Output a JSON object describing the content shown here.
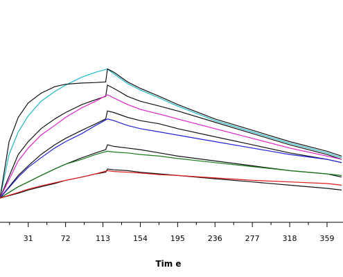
{
  "chart_data": {
    "type": "line",
    "title": "",
    "xlabel": "Tim e",
    "ylabel": "",
    "grid": false,
    "xlim": [
      0,
      375
    ],
    "ylim": [
      0,
      100
    ],
    "x_ticks": [
      31,
      72,
      113,
      154,
      195,
      236,
      277,
      318,
      359
    ],
    "x_tick_labels": [
      "31",
      "72",
      "113",
      "154",
      "195",
      "236",
      "277",
      "318",
      "359"
    ],
    "series": [
      {
        "color": "#19b8c8",
        "points": [
          [
            0,
            3
          ],
          [
            10,
            30
          ],
          [
            20,
            44
          ],
          [
            31,
            54
          ],
          [
            45,
            63
          ],
          [
            60,
            69
          ],
          [
            72,
            73
          ],
          [
            90,
            78
          ],
          [
            105,
            81
          ],
          [
            118,
            83
          ],
          [
            125,
            80
          ],
          [
            140,
            74
          ],
          [
            154,
            70
          ],
          [
            175,
            65
          ],
          [
            195,
            60
          ],
          [
            236,
            51
          ],
          [
            277,
            44
          ],
          [
            318,
            37
          ],
          [
            359,
            31
          ],
          [
            375,
            28
          ]
        ]
      },
      {
        "color": "#111111",
        "points": [
          [
            0,
            3
          ],
          [
            10,
            38
          ],
          [
            20,
            53
          ],
          [
            31,
            62
          ],
          [
            45,
            68
          ],
          [
            60,
            72
          ],
          [
            72,
            73.5
          ],
          [
            90,
            74.3
          ],
          [
            105,
            74.6
          ],
          [
            116,
            75
          ],
          [
            118,
            83
          ],
          [
            125,
            81
          ],
          [
            140,
            75
          ],
          [
            154,
            71
          ],
          [
            175,
            66
          ],
          [
            195,
            61
          ],
          [
            236,
            52
          ],
          [
            277,
            45
          ],
          [
            318,
            38
          ],
          [
            359,
            32
          ],
          [
            375,
            29
          ]
        ]
      },
      {
        "color": "#111111",
        "points": [
          [
            0,
            3
          ],
          [
            20,
            30
          ],
          [
            31,
            38
          ],
          [
            45,
            46
          ],
          [
            60,
            52
          ],
          [
            72,
            56
          ],
          [
            90,
            61
          ],
          [
            105,
            64
          ],
          [
            116,
            66
          ],
          [
            118,
            73
          ],
          [
            125,
            71
          ],
          [
            140,
            66
          ],
          [
            154,
            63
          ],
          [
            175,
            60
          ],
          [
            195,
            57
          ],
          [
            236,
            50
          ],
          [
            277,
            43
          ],
          [
            318,
            36
          ],
          [
            359,
            30
          ],
          [
            375,
            27
          ]
        ]
      },
      {
        "color": "#e020d0",
        "points": [
          [
            0,
            3
          ],
          [
            20,
            26
          ],
          [
            31,
            34
          ],
          [
            45,
            42
          ],
          [
            60,
            48
          ],
          [
            72,
            53
          ],
          [
            90,
            59
          ],
          [
            105,
            63
          ],
          [
            118,
            67
          ],
          [
            125,
            65
          ],
          [
            140,
            61
          ],
          [
            154,
            58
          ],
          [
            175,
            55
          ],
          [
            195,
            52
          ],
          [
            236,
            46
          ],
          [
            277,
            40
          ],
          [
            318,
            34
          ],
          [
            359,
            29
          ],
          [
            375,
            27
          ]
        ]
      },
      {
        "color": "#111111",
        "points": [
          [
            0,
            3
          ],
          [
            20,
            17
          ],
          [
            31,
            23
          ],
          [
            45,
            30
          ],
          [
            60,
            36
          ],
          [
            72,
            40
          ],
          [
            90,
            45
          ],
          [
            105,
            49
          ],
          [
            116,
            52
          ],
          [
            118,
            57
          ],
          [
            125,
            56
          ],
          [
            140,
            53
          ],
          [
            154,
            51
          ],
          [
            175,
            49
          ],
          [
            195,
            46
          ],
          [
            236,
            41
          ],
          [
            277,
            36
          ],
          [
            318,
            31
          ],
          [
            359,
            27
          ],
          [
            375,
            25
          ]
        ]
      },
      {
        "color": "#2020d8",
        "points": [
          [
            0,
            3
          ],
          [
            20,
            16
          ],
          [
            31,
            22
          ],
          [
            45,
            28
          ],
          [
            60,
            34
          ],
          [
            72,
            38
          ],
          [
            90,
            43
          ],
          [
            105,
            48
          ],
          [
            118,
            52
          ],
          [
            125,
            51
          ],
          [
            140,
            48
          ],
          [
            154,
            46
          ],
          [
            175,
            44
          ],
          [
            195,
            42
          ],
          [
            236,
            38
          ],
          [
            277,
            34
          ],
          [
            318,
            30
          ],
          [
            359,
            27
          ],
          [
            375,
            25
          ]
        ]
      },
      {
        "color": "#111111",
        "points": [
          [
            0,
            3
          ],
          [
            20,
            10
          ],
          [
            31,
            13
          ],
          [
            45,
            17
          ],
          [
            60,
            21
          ],
          [
            72,
            24
          ],
          [
            90,
            28
          ],
          [
            105,
            31
          ],
          [
            116,
            33
          ],
          [
            118,
            36
          ],
          [
            125,
            35
          ],
          [
            140,
            34
          ],
          [
            154,
            33
          ],
          [
            175,
            31
          ],
          [
            195,
            29
          ],
          [
            236,
            26
          ],
          [
            277,
            23
          ],
          [
            318,
            20
          ],
          [
            359,
            18
          ],
          [
            375,
            16
          ]
        ]
      },
      {
        "color": "#1a7a1a",
        "points": [
          [
            0,
            3
          ],
          [
            20,
            10
          ],
          [
            31,
            13
          ],
          [
            45,
            17
          ],
          [
            60,
            21
          ],
          [
            72,
            24
          ],
          [
            90,
            27
          ],
          [
            105,
            30
          ],
          [
            118,
            32
          ],
          [
            125,
            31.5
          ],
          [
            140,
            31
          ],
          [
            154,
            30
          ],
          [
            175,
            29
          ],
          [
            195,
            27.5
          ],
          [
            236,
            25
          ],
          [
            277,
            22.5
          ],
          [
            318,
            20
          ],
          [
            359,
            18
          ],
          [
            375,
            17
          ]
        ]
      },
      {
        "color": "#111111",
        "points": [
          [
            0,
            3
          ],
          [
            20,
            6
          ],
          [
            31,
            8
          ],
          [
            45,
            10
          ],
          [
            60,
            12
          ],
          [
            72,
            14
          ],
          [
            90,
            16
          ],
          [
            105,
            18
          ],
          [
            116,
            19
          ],
          [
            118,
            21
          ],
          [
            125,
            20.5
          ],
          [
            140,
            20
          ],
          [
            154,
            19
          ],
          [
            175,
            18
          ],
          [
            195,
            17
          ],
          [
            236,
            15
          ],
          [
            277,
            13
          ],
          [
            318,
            11
          ],
          [
            359,
            9
          ],
          [
            375,
            8
          ]
        ]
      },
      {
        "color": "#e01818",
        "points": [
          [
            0,
            3
          ],
          [
            20,
            6.5
          ],
          [
            31,
            8.5
          ],
          [
            45,
            10.5
          ],
          [
            60,
            12.5
          ],
          [
            72,
            14
          ],
          [
            90,
            16
          ],
          [
            105,
            18
          ],
          [
            118,
            20
          ],
          [
            125,
            19.5
          ],
          [
            140,
            19
          ],
          [
            154,
            18.5
          ],
          [
            175,
            17.5
          ],
          [
            195,
            17
          ],
          [
            236,
            15.5
          ],
          [
            277,
            14
          ],
          [
            318,
            13
          ],
          [
            359,
            12
          ],
          [
            375,
            11
          ]
        ]
      }
    ]
  }
}
